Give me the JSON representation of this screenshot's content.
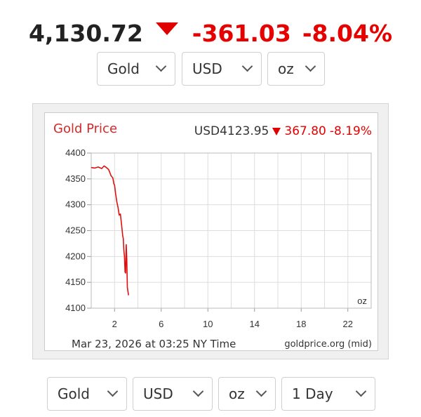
{
  "header": {
    "price": "4,130.72",
    "change": "-361.03",
    "change_pct": "-8.04%",
    "direction_icon": "down-triangle-icon",
    "down_color": "#e60000"
  },
  "top_selectors": {
    "metal": "Gold",
    "currency": "USD",
    "unit": "oz"
  },
  "chart": {
    "title": "Gold Price",
    "quote_price": "USD4123.95",
    "quote_change": "367.80",
    "quote_pct": "-8.19%",
    "unit": "oz",
    "timestamp": "Mar 23, 2026 at 03:25 NY Time",
    "source": "goldprice.org (mid)"
  },
  "chart_data": {
    "type": "line",
    "title": "Gold Price",
    "xlabel": "",
    "ylabel": "",
    "xlim": [
      0,
      24
    ],
    "ylim": [
      4100,
      4400
    ],
    "x_ticks": [
      2,
      6,
      10,
      14,
      18,
      22
    ],
    "y_ticks": [
      4100,
      4150,
      4200,
      4250,
      4300,
      4350,
      4400
    ],
    "grid": true,
    "line_color": "#e01010",
    "series": [
      {
        "x": [
          0,
          0.3,
          0.6,
          0.9,
          1.1,
          1.3,
          1.5,
          1.7,
          1.85,
          1.95,
          2.0,
          2.1,
          2.2,
          2.3,
          2.4,
          2.5,
          2.6,
          2.7,
          2.75,
          2.8,
          2.85,
          2.9,
          2.95,
          3.0,
          3.05,
          3.1,
          3.2
        ],
        "y": [
          4372,
          4371,
          4373,
          4370,
          4375,
          4372,
          4368,
          4356,
          4352,
          4340,
          4338,
          4320,
          4305,
          4295,
          4280,
          4282,
          4262,
          4240,
          4235,
          4212,
          4200,
          4170,
          4168,
          4223,
          4195,
          4140,
          4125
        ]
      }
    ]
  },
  "bottom_selectors": {
    "metal": "Gold",
    "currency": "USD",
    "unit": "oz",
    "range": "1 Day"
  }
}
